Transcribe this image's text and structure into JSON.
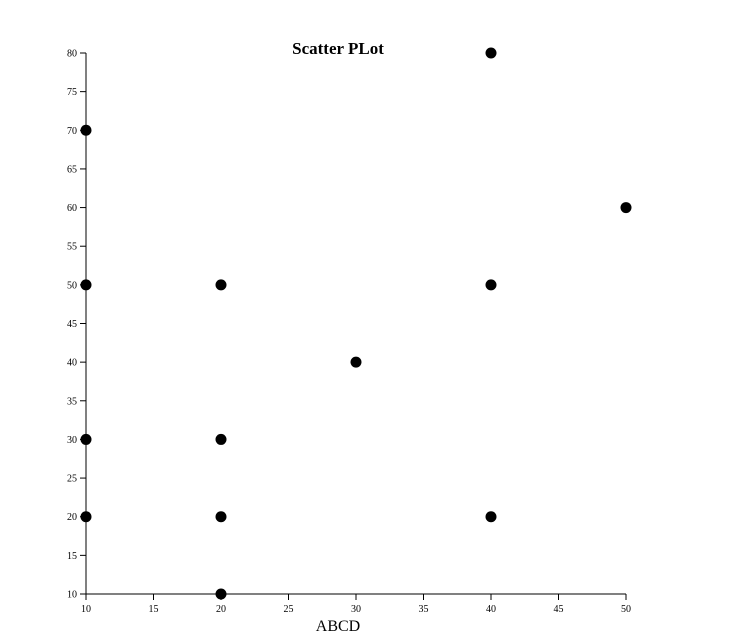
{
  "chart_data": {
    "type": "scatter",
    "title": "Scatter PLot",
    "xlabel": "ABCD",
    "ylabel": "",
    "xlim": [
      10,
      50
    ],
    "ylim": [
      10,
      80
    ],
    "xticks": [
      10,
      15,
      20,
      25,
      30,
      35,
      40,
      45,
      50
    ],
    "yticks": [
      10,
      15,
      20,
      25,
      30,
      35,
      40,
      45,
      50,
      55,
      60,
      65,
      70,
      75,
      80
    ],
    "grid": false,
    "legend": "none",
    "point_color": "#000000",
    "points": [
      {
        "x": 10,
        "y": 70
      },
      {
        "x": 10,
        "y": 50
      },
      {
        "x": 10,
        "y": 30
      },
      {
        "x": 10,
        "y": 20
      },
      {
        "x": 20,
        "y": 50
      },
      {
        "x": 20,
        "y": 30
      },
      {
        "x": 20,
        "y": 20
      },
      {
        "x": 20,
        "y": 10
      },
      {
        "x": 30,
        "y": 40
      },
      {
        "x": 40,
        "y": 80
      },
      {
        "x": 40,
        "y": 50
      },
      {
        "x": 40,
        "y": 20
      },
      {
        "x": 50,
        "y": 60
      }
    ]
  }
}
